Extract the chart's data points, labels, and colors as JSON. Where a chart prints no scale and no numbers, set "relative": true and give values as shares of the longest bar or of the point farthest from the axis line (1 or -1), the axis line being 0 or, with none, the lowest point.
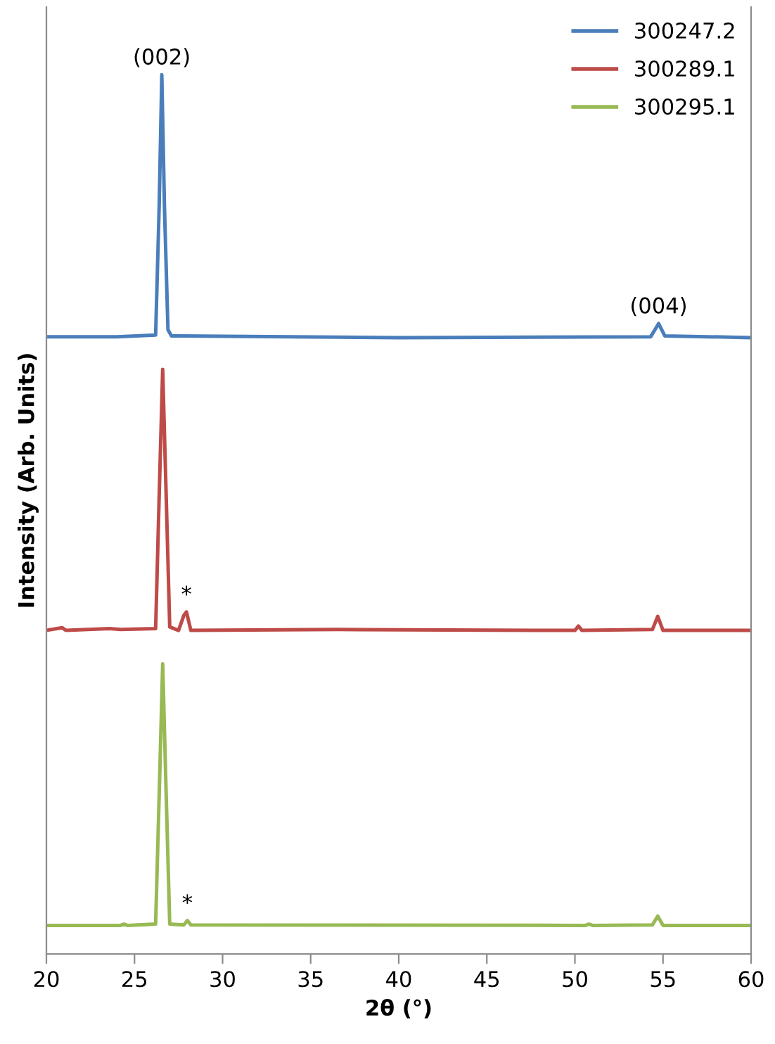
{
  "chart_data": {
    "type": "line",
    "relative": true,
    "xlabel": "2θ (°)",
    "ylabel": "Intensity (Arb. Units)",
    "xlim": [
      20,
      60
    ],
    "xticks": [
      20,
      25,
      30,
      35,
      40,
      45,
      50,
      55,
      60
    ],
    "grid": false,
    "legend": "top right",
    "marker": "none",
    "line_style": "solid",
    "series": [
      {
        "name": "300247.2",
        "color": "#4a7ebb",
        "x": [
          20,
          24,
          26.2,
          26.4,
          26.55,
          26.7,
          26.9,
          27.1,
          40,
          54.3,
          54.6,
          54.75,
          55.1,
          60
        ],
        "values": [
          0.702,
          0.702,
          0.704,
          0.85,
          1.0,
          0.85,
          0.71,
          0.703,
          0.701,
          0.702,
          0.712,
          0.717,
          0.703,
          0.701
        ]
      },
      {
        "name": "300289.1",
        "color": "#be4b48",
        "x": [
          20,
          20.9,
          21.1,
          23.6,
          24.2,
          26.2,
          26.4,
          26.6,
          26.8,
          27.0,
          27.5,
          27.8,
          27.95,
          28.2,
          36.6,
          50.0,
          50.2,
          50.4,
          54.4,
          54.7,
          55.0,
          60
        ],
        "values": [
          0.368,
          0.371,
          0.368,
          0.37,
          0.369,
          0.37,
          0.52,
          0.665,
          0.52,
          0.372,
          0.368,
          0.385,
          0.389,
          0.368,
          0.369,
          0.368,
          0.373,
          0.368,
          0.369,
          0.384,
          0.368,
          0.368
        ]
      },
      {
        "name": "300295.1",
        "color": "#98b954",
        "x": [
          20,
          24.2,
          24.4,
          24.6,
          26.2,
          26.4,
          26.6,
          26.8,
          27.0,
          27.8,
          28.0,
          28.2,
          50.6,
          50.8,
          51.0,
          54.4,
          54.7,
          55.0,
          60
        ],
        "values": [
          0.0325,
          0.0325,
          0.034,
          0.0325,
          0.034,
          0.18,
          0.33,
          0.18,
          0.034,
          0.033,
          0.038,
          0.033,
          0.0325,
          0.034,
          0.0325,
          0.033,
          0.043,
          0.0325,
          0.0325
        ]
      }
    ],
    "annotations": [
      {
        "text": "(002)",
        "x": 26.55,
        "y": 1.0
      },
      {
        "text": "(004)",
        "x": 54.75,
        "y": 0.717
      },
      {
        "text": "*",
        "x": 27.95,
        "y": 0.389
      },
      {
        "text": "*",
        "x": 28.0,
        "y": 0.038
      }
    ]
  }
}
